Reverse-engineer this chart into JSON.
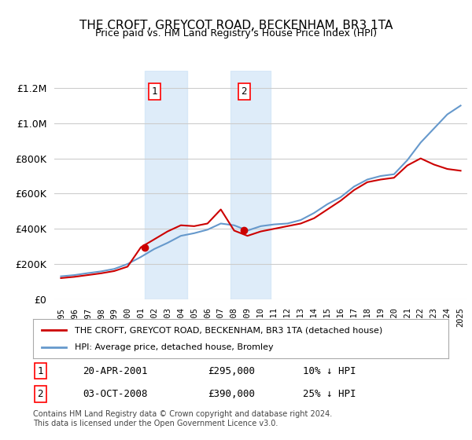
{
  "title": "THE CROFT, GREYCOT ROAD, BECKENHAM, BR3 1TA",
  "subtitle": "Price paid vs. HM Land Registry's House Price Index (HPI)",
  "legend_line1": "THE CROFT, GREYCOT ROAD, BECKENHAM, BR3 1TA (detached house)",
  "legend_line2": "HPI: Average price, detached house, Bromley",
  "footnote": "Contains HM Land Registry data © Crown copyright and database right 2024.\nThis data is licensed under the Open Government Licence v3.0.",
  "annotation1_label": "1",
  "annotation1_date": "20-APR-2001",
  "annotation1_price": "£295,000",
  "annotation1_note": "10% ↓ HPI",
  "annotation2_label": "2",
  "annotation2_date": "03-OCT-2008",
  "annotation2_price": "£390,000",
  "annotation2_note": "25% ↓ HPI",
  "shade1_x_start": 2001.3,
  "shade1_x_end": 2004.5,
  "shade2_x_start": 2007.75,
  "shade2_x_end": 2010.75,
  "marker1_x": 2001.3,
  "marker1_y": 295000,
  "marker2_x": 2008.75,
  "marker2_y": 390000,
  "ylim": [
    0,
    1300000
  ],
  "xlim": [
    1994.5,
    2025.5
  ],
  "background_color": "#ffffff",
  "plot_bg_color": "#ffffff",
  "grid_color": "#cccccc",
  "shade_color": "#d0e4f7",
  "red_line_color": "#cc0000",
  "blue_line_color": "#6699cc",
  "hpi_years": [
    1995,
    1996,
    1997,
    1998,
    1999,
    2000,
    2001,
    2002,
    2003,
    2004,
    2005,
    2006,
    2007,
    2008,
    2009,
    2010,
    2011,
    2012,
    2013,
    2014,
    2015,
    2016,
    2017,
    2018,
    2019,
    2020,
    2021,
    2022,
    2023,
    2024,
    2025
  ],
  "hpi_values": [
    130000,
    137000,
    148000,
    158000,
    172000,
    200000,
    240000,
    285000,
    320000,
    360000,
    375000,
    395000,
    430000,
    420000,
    390000,
    415000,
    425000,
    430000,
    450000,
    490000,
    540000,
    580000,
    640000,
    680000,
    700000,
    710000,
    790000,
    890000,
    970000,
    1050000,
    1100000
  ],
  "price_years": [
    1995,
    1996,
    1997,
    1998,
    1999,
    2000,
    2001,
    2002,
    2003,
    2004,
    2005,
    2006,
    2007,
    2008,
    2009,
    2010,
    2011,
    2012,
    2013,
    2014,
    2015,
    2016,
    2017,
    2018,
    2019,
    2020,
    2021,
    2022,
    2023,
    2024,
    2025
  ],
  "price_values": [
    120000,
    127000,
    137000,
    147000,
    160000,
    185000,
    295000,
    340000,
    385000,
    420000,
    415000,
    430000,
    510000,
    390000,
    360000,
    385000,
    400000,
    415000,
    430000,
    460000,
    510000,
    560000,
    620000,
    665000,
    680000,
    690000,
    760000,
    800000,
    765000,
    740000,
    730000
  ],
  "xtick_years": [
    1995,
    1996,
    1997,
    1998,
    1999,
    2000,
    2001,
    2002,
    2003,
    2004,
    2005,
    2006,
    2007,
    2008,
    2009,
    2010,
    2011,
    2012,
    2013,
    2014,
    2015,
    2016,
    2017,
    2018,
    2019,
    2020,
    2021,
    2022,
    2023,
    2024,
    2025
  ]
}
